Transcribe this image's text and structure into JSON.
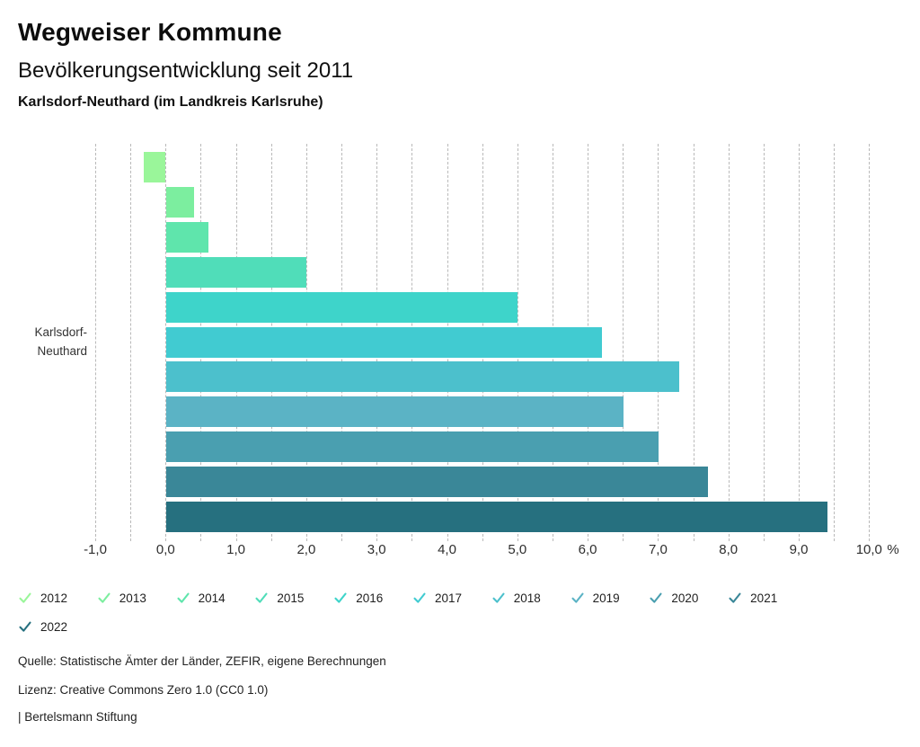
{
  "header": {
    "title": "Wegweiser Kommune",
    "subtitle": "Bevölkerungsentwicklung seit 2011",
    "region": "Karlsdorf-Neuthard (im Landkreis Karlsruhe)"
  },
  "chart_data": {
    "type": "bar",
    "orientation": "horizontal",
    "title": "Bevölkerungsentwicklung seit 2011",
    "group_label_lines": [
      "Karlsdorf-",
      "Neuthard"
    ],
    "categories": [
      "2012",
      "2013",
      "2014",
      "2015",
      "2016",
      "2017",
      "2018",
      "2019",
      "2020",
      "2021",
      "2022"
    ],
    "values": [
      -0.3,
      0.4,
      0.6,
      2.0,
      5.0,
      6.2,
      7.3,
      6.5,
      7.0,
      7.7,
      9.4
    ],
    "colors": [
      "#9af69a",
      "#7cee9f",
      "#5fe5ac",
      "#50ddb9",
      "#3ed4ca",
      "#41cbd1",
      "#4cc0cc",
      "#5bb3c5",
      "#4a9fb0",
      "#3a8798",
      "#26707f"
    ],
    "xlim": [
      -1.0,
      10.0
    ],
    "grid_step": 0.5,
    "grid": true,
    "xticks": [
      "-1,0",
      "0,0",
      "1,0",
      "2,0",
      "3,0",
      "4,0",
      "5,0",
      "6,0",
      "7,0",
      "8,0",
      "9,0",
      "10,0"
    ],
    "x_unit": "%",
    "legend_position": "bottom"
  },
  "legend": {
    "check_icon": "checkmark-icon",
    "items": [
      {
        "label": "2012",
        "color": "#9af69a"
      },
      {
        "label": "2013",
        "color": "#7cee9f"
      },
      {
        "label": "2014",
        "color": "#5fe5ac"
      },
      {
        "label": "2015",
        "color": "#50ddb9"
      },
      {
        "label": "2016",
        "color": "#3ed4ca"
      },
      {
        "label": "2017",
        "color": "#41cbd1"
      },
      {
        "label": "2018",
        "color": "#4cc0cc"
      },
      {
        "label": "2019",
        "color": "#5bb3c5"
      },
      {
        "label": "2020",
        "color": "#4a9fb0"
      },
      {
        "label": "2021",
        "color": "#3a8798"
      },
      {
        "label": "2022",
        "color": "#26707f"
      }
    ]
  },
  "footer": {
    "source": "Quelle: Statistische Ämter der Länder, ZEFIR, eigene Berechnungen",
    "license": "Lizenz: Creative Commons Zero 1.0 (CC0 1.0)",
    "attribution": "| Bertelsmann Stiftung"
  }
}
